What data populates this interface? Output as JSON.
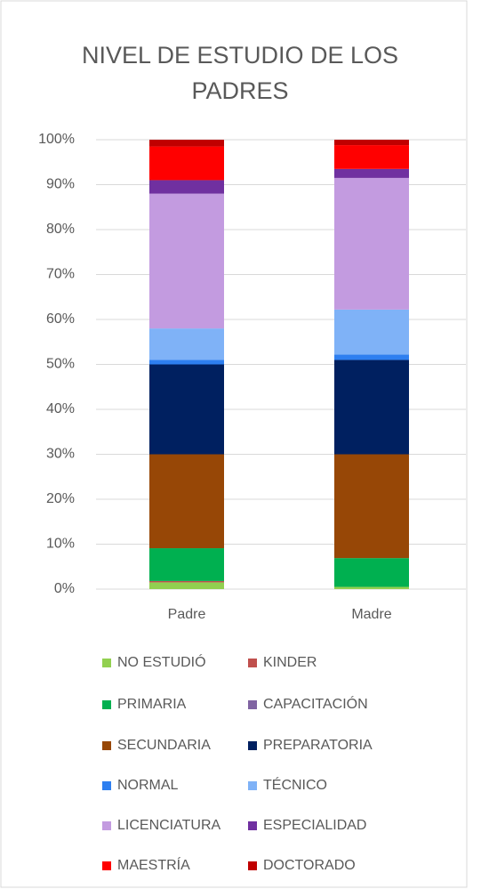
{
  "chart_data": {
    "type": "stacked_bar",
    "title": "NIVEL DE ESTUDIO DE LOS PADRES",
    "categories": [
      "Padre",
      "Madre"
    ],
    "series": [
      {
        "name": "NO ESTUDIÓ",
        "color": "#92d050",
        "values": [
          1.5,
          0.5
        ]
      },
      {
        "name": "KINDER",
        "color": "#c0504d",
        "values": [
          0.3,
          0
        ]
      },
      {
        "name": "PRIMARIA",
        "color": "#00b050",
        "values": [
          7.3,
          6.4
        ]
      },
      {
        "name": "CAPACITACIÓN",
        "color": "#8064a2",
        "values": [
          0,
          0
        ]
      },
      {
        "name": "SECUNDARIA",
        "color": "#974706",
        "values": [
          20.9,
          23.1
        ]
      },
      {
        "name": "PREPARATORIA",
        "color": "#002060",
        "values": [
          20,
          21
        ]
      },
      {
        "name": "NORMAL",
        "color": "#2e7ff0",
        "values": [
          1,
          1.2
        ]
      },
      {
        "name": "TÉCNICO",
        "color": "#7fb2f7",
        "values": [
          7,
          10
        ]
      },
      {
        "name": "LICENCIATURA",
        "color": "#c39be0",
        "values": [
          30,
          29.3
        ]
      },
      {
        "name": "ESPECIALIDAD",
        "color": "#7030a0",
        "values": [
          3,
          2
        ]
      },
      {
        "name": "MAESTRÍA",
        "color": "#ff0000",
        "values": [
          7.5,
          5.3
        ]
      },
      {
        "name": "DOCTORADO",
        "color": "#c00000",
        "values": [
          1.5,
          1.2
        ]
      }
    ],
    "ylim": [
      0,
      100
    ],
    "yticks": [
      {
        "value": 0,
        "label": "0%"
      },
      {
        "value": 10,
        "label": "10%"
      },
      {
        "value": 20,
        "label": "20%"
      },
      {
        "value": 30,
        "label": "30%"
      },
      {
        "value": 40,
        "label": "40%"
      },
      {
        "value": 50,
        "label": "50%"
      },
      {
        "value": 60,
        "label": "60%"
      },
      {
        "value": 70,
        "label": "70%"
      },
      {
        "value": 80,
        "label": "80%"
      },
      {
        "value": 90,
        "label": "90%"
      },
      {
        "value": 100,
        "label": "100%"
      }
    ],
    "grid": true,
    "legend": "bottom"
  }
}
